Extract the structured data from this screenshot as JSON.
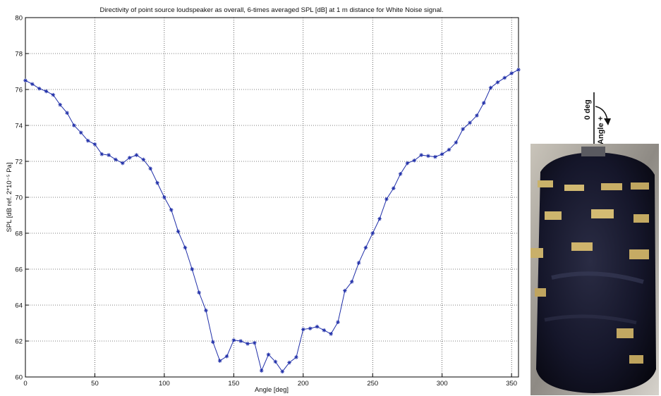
{
  "chart_data": {
    "type": "line",
    "title": "Directivity of point source loudspeaker as overall, 6-times averaged SPL [dB] at 1 m distance for White Noise signal.",
    "xlabel": "Angle [deg]",
    "ylabel": "SPL [dB ref. 2*10⁻⁵ Pa]",
    "xlim": [
      0,
      355
    ],
    "ylim": [
      60,
      80
    ],
    "xticks": [
      0,
      50,
      100,
      150,
      200,
      250,
      300,
      350
    ],
    "yticks": [
      60,
      62,
      64,
      66,
      68,
      70,
      72,
      74,
      76,
      78,
      80
    ],
    "grid": true,
    "marker": "star",
    "series_color": "#1f2ea8",
    "x": [
      0,
      5,
      10,
      15,
      20,
      25,
      30,
      35,
      40,
      45,
      50,
      55,
      60,
      65,
      70,
      75,
      80,
      85,
      90,
      95,
      100,
      105,
      110,
      115,
      120,
      125,
      130,
      135,
      140,
      145,
      150,
      155,
      160,
      165,
      170,
      175,
      180,
      185,
      190,
      195,
      200,
      205,
      210,
      215,
      220,
      225,
      230,
      235,
      240,
      245,
      250,
      255,
      260,
      265,
      270,
      275,
      280,
      285,
      290,
      295,
      300,
      305,
      310,
      315,
      320,
      325,
      330,
      335,
      340,
      345,
      350,
      355
    ],
    "y": [
      76.5,
      76.3,
      76.05,
      75.9,
      75.7,
      75.15,
      74.7,
      74.0,
      73.6,
      73.15,
      72.95,
      72.4,
      72.35,
      72.1,
      71.9,
      72.2,
      72.35,
      72.1,
      71.6,
      70.8,
      70.0,
      69.3,
      68.1,
      67.2,
      66.0,
      64.7,
      63.7,
      61.95,
      60.9,
      61.15,
      62.05,
      62.0,
      61.85,
      61.9,
      60.35,
      61.25,
      60.85,
      60.3,
      60.8,
      61.1,
      62.65,
      62.7,
      62.8,
      62.6,
      62.4,
      63.05,
      64.8,
      65.3,
      66.35,
      67.2,
      68.0,
      68.8,
      69.9,
      70.5,
      71.3,
      71.9,
      72.05,
      72.35,
      72.3,
      72.25,
      72.4,
      72.65,
      73.05,
      73.8,
      74.15,
      74.55,
      75.25,
      76.1,
      76.4,
      76.65,
      76.9,
      77.1
    ]
  },
  "diagram": {
    "zero_label": "0 deg",
    "angle_label": "Angle +"
  },
  "photo": {
    "subject": "loudspeaker wrapped in black tape with yellow strips"
  }
}
